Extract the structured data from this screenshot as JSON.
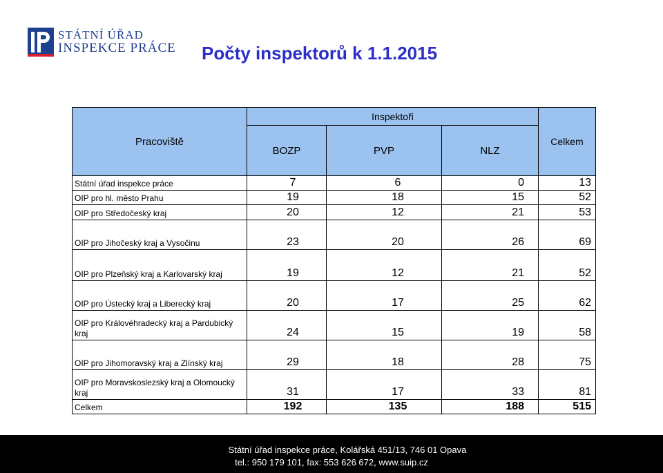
{
  "logo": {
    "line1": "STÁTNÍ ÚŘAD",
    "line2": "INSPEKCE PRÁCE"
  },
  "title": "Počty inspektorů k 1.1.2015",
  "table": {
    "header": {
      "workplace": "Pracoviště",
      "inspectors": "Inspektoři",
      "total": "Celkem",
      "cols": [
        "BOZP",
        "PVP",
        "NLZ"
      ]
    },
    "rows": [
      {
        "name": "Státní úřad inspekce práce",
        "bozp": "7",
        "pvp": "6",
        "nlz": "0",
        "total": "13"
      },
      {
        "name": "OIP pro hl. město Prahu",
        "bozp": "19",
        "pvp": "18",
        "nlz": "15",
        "total": "52"
      },
      {
        "name": "OIP pro Středočeský kraj",
        "bozp": "20",
        "pvp": "12",
        "nlz": "21",
        "total": "53"
      },
      {
        "name": "OIP pro Jihočeský kraj a Vysočinu",
        "bozp": "23",
        "pvp": "20",
        "nlz": "26",
        "total": "69"
      },
      {
        "name": "OIP pro Plzeňský kraj a Karlovarský kraj",
        "bozp": "19",
        "pvp": "12",
        "nlz": "21",
        "total": "52"
      },
      {
        "name": "OIP pro Ústecký kraj a Liberecký kraj",
        "bozp": "20",
        "pvp": "17",
        "nlz": "25",
        "total": "62"
      },
      {
        "name": "OIP pro Královéhradecký kraj a Pardubický kraj",
        "bozp": "24",
        "pvp": "15",
        "nlz": "19",
        "total": "58"
      },
      {
        "name": "OIP pro Jihomoravský kraj a Zlínský kraj",
        "bozp": "29",
        "pvp": "18",
        "nlz": "28",
        "total": "75"
      },
      {
        "name": "OIP pro Moravskoslezský kraj a Olomoucký kraj",
        "bozp": "31",
        "pvp": "17",
        "nlz": "33",
        "total": "81"
      }
    ],
    "totals": {
      "name": "Celkem",
      "bozp": "192",
      "pvp": "135",
      "nlz": "188",
      "total": "515"
    }
  },
  "footer": {
    "line1": "Státní úřad inspekce práce, Kolářská 451/13, 746 01 Opava",
    "line2": "tel.: 950 179 101, fax: 553 626 672, www.suip.cz"
  },
  "colors": {
    "header_fill": "#9cc3f0",
    "title": "#2b2ec8",
    "logo": "#1f3f8f",
    "footer_bg": "#000000"
  }
}
